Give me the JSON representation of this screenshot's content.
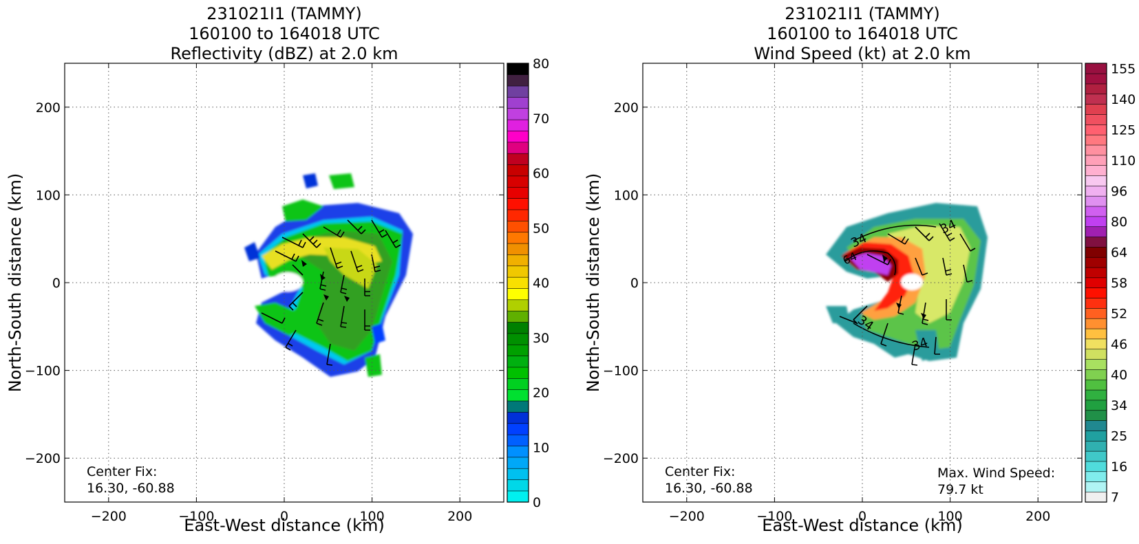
{
  "chart_data": [
    {
      "type": "heatmap",
      "title": [
        "231021I1 (TAMMY)",
        "160100 to 164018 UTC",
        "Reflectivity (dBZ) at 2.0 km"
      ],
      "xlabel": "East-West distance (km)",
      "ylabel": "North-South distance (km)",
      "xlim": [
        -250,
        250
      ],
      "ylim": [
        -250,
        250
      ],
      "xticks": [
        -200,
        -100,
        0,
        100,
        200
      ],
      "yticks": [
        -200,
        -100,
        0,
        100,
        200
      ],
      "tick_labels": [
        "−200",
        "−100",
        "0",
        "100",
        "200"
      ],
      "grid": true,
      "colorbar": {
        "min": 0,
        "max": 80,
        "ticks": [
          0,
          10,
          20,
          30,
          40,
          50,
          60,
          70,
          80
        ],
        "colors": [
          "#00f0f0",
          "#00d8e8",
          "#00c0f0",
          "#00a8f8",
          "#0090ff",
          "#0060ff",
          "#0040ff",
          "#0030d8",
          "#007878",
          "#00e030",
          "#00d020",
          "#00c000",
          "#00b010",
          "#00a000",
          "#009000",
          "#008000",
          "#60b000",
          "#b0d000",
          "#ffff00",
          "#f8e000",
          "#f0c800",
          "#f0b000",
          "#f09000",
          "#ff7800",
          "#ff5000",
          "#ff2800",
          "#ff1000",
          "#e80000",
          "#d80000",
          "#c80000",
          "#c00020",
          "#e00080",
          "#ff00c8",
          "#e020e0",
          "#c040e0",
          "#a040d0",
          "#7040a0",
          "#402040",
          "#000000"
        ]
      },
      "annotation": [
        "Center Fix:",
        "16.30, -60.88"
      ]
    },
    {
      "type": "heatmap",
      "title": [
        "231021I1 (TAMMY)",
        "160100 to 164018 UTC",
        "Wind Speed (kt) at 2.0 km"
      ],
      "xlabel": "East-West distance (km)",
      "ylabel": "North-South distance (km)",
      "xlim": [
        -250,
        250
      ],
      "ylim": [
        -250,
        250
      ],
      "xticks": [
        -200,
        -100,
        0,
        100,
        200
      ],
      "yticks": [
        -200,
        -100,
        0,
        100,
        200
      ],
      "tick_labels": [
        "−200",
        "−100",
        "0",
        "100",
        "200"
      ],
      "grid": true,
      "contour_labels": [
        "34",
        "34",
        "64",
        "34",
        "34"
      ],
      "colorbar": {
        "ticks": [
          7,
          16,
          25,
          34,
          40,
          46,
          52,
          58,
          64,
          80,
          96,
          110,
          125,
          140,
          155
        ],
        "colors": [
          "#f0f0f0",
          "#b0f4f4",
          "#80ecec",
          "#50dcdc",
          "#40c8c8",
          "#30b0b0",
          "#20a0a0",
          "#208890",
          "#209048",
          "#20a040",
          "#30b040",
          "#50c040",
          "#80d050",
          "#a8e060",
          "#d0e060",
          "#f0e060",
          "#ffc040",
          "#ff9030",
          "#ff6020",
          "#ff3010",
          "#ff1000",
          "#e00000",
          "#c00000",
          "#a00000",
          "#800000",
          "#801040",
          "#a020b0",
          "#c040f0",
          "#d060f0",
          "#e090f0",
          "#f0b0f0",
          "#f8c8f0",
          "#ffb0d0",
          "#ffa0b8",
          "#ff90a0",
          "#ff7880",
          "#ff6070",
          "#f05060",
          "#e04050",
          "#c03050",
          "#b02040",
          "#a01040",
          "#981040"
        ]
      },
      "annotation": [
        "Center Fix:",
        "16.30, -60.88"
      ],
      "annotation_right": [
        "Max. Wind Speed:",
        "79.7 kt"
      ]
    }
  ]
}
